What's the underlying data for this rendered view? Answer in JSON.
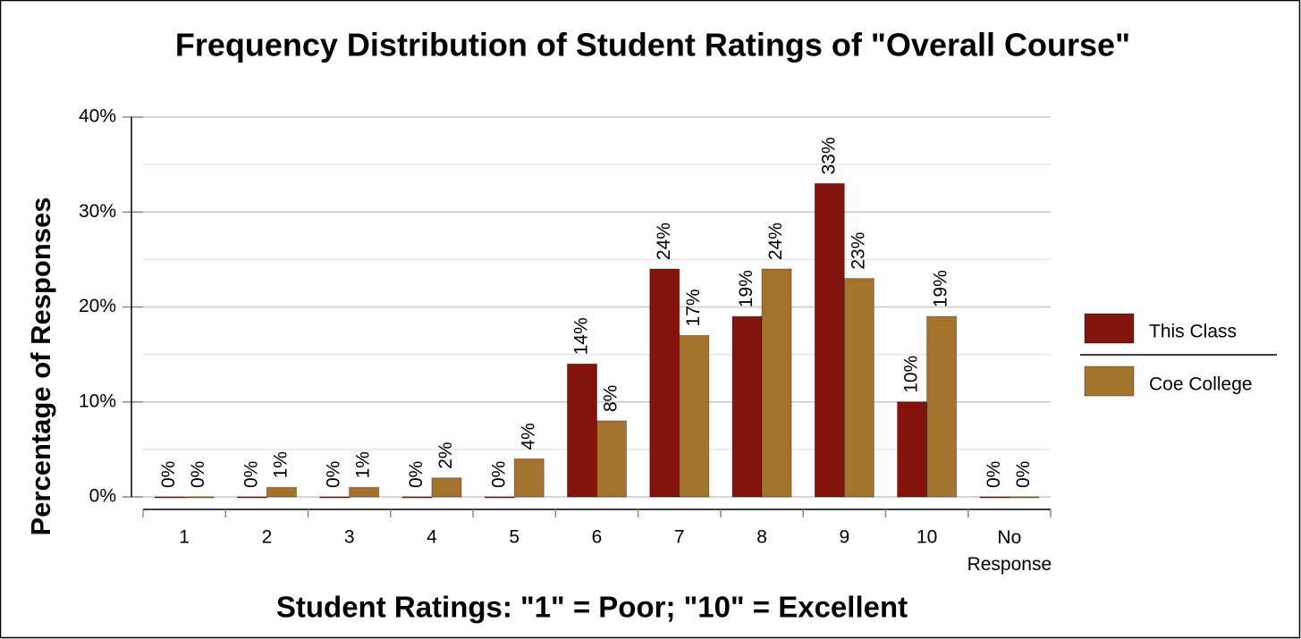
{
  "chart_data": {
    "type": "bar",
    "title": "Frequency Distribution of Student Ratings of \"Overall Course\"",
    "x_label": "Student Ratings: \"1\" = Poor; \"10\" = Excellent",
    "y_label": "Percentage of Responses",
    "categories": [
      "1",
      "2",
      "3",
      "4",
      "5",
      "6",
      "7",
      "8",
      "9",
      "10",
      "No Response"
    ],
    "series": [
      {
        "name": "This Class",
        "color": "#84130c",
        "values": [
          0,
          0,
          0,
          0,
          0,
          14,
          24,
          19,
          33,
          10,
          0
        ],
        "value_labels": [
          "0%",
          "0%",
          "0%",
          "0%",
          "0%",
          "14%",
          "24%",
          "19%",
          "33%",
          "10%",
          "0%"
        ]
      },
      {
        "name": "Coe College",
        "color": "#a4742f",
        "values": [
          0,
          1,
          1,
          2,
          4,
          8,
          17,
          24,
          23,
          19,
          0
        ],
        "value_labels": [
          "0%",
          "1%",
          "1%",
          "2%",
          "4%",
          "8%",
          "17%",
          "24%",
          "23%",
          "19%",
          "0%"
        ]
      }
    ],
    "ylim": [
      0,
      40
    ],
    "yticks": [
      {
        "value": 0,
        "label": "0%"
      },
      {
        "value": 10,
        "label": "10%"
      },
      {
        "value": 20,
        "label": "20%"
      },
      {
        "value": 30,
        "label": "30%"
      },
      {
        "value": 40,
        "label": "40%"
      }
    ],
    "minor_yticks": [
      5,
      15,
      25,
      35
    ],
    "grid": true,
    "legend": "right"
  }
}
